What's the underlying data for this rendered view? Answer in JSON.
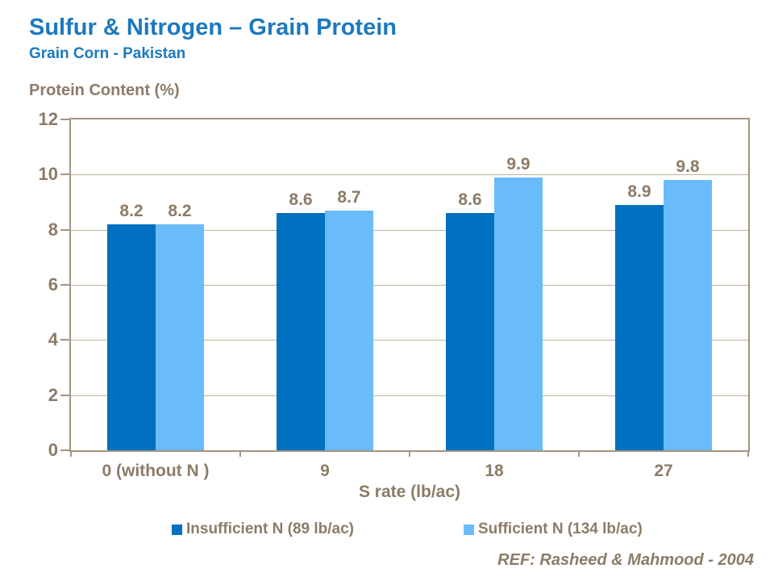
{
  "header": {
    "title": "Sulfur & Nitrogen – Grain Protein",
    "subtitle": "Grain Corn - Pakistan"
  },
  "chart_data": {
    "type": "bar",
    "title": "Sulfur & Nitrogen – Grain Protein",
    "subtitle": "Grain Corn - Pakistan",
    "xlabel": "S rate (lb/ac)",
    "ylabel": "Protein Content (%)",
    "ylim": [
      0,
      12
    ],
    "ytick_step": 2,
    "grid": "horizontal",
    "legend_position": "bottom",
    "data_labels": true,
    "categories": [
      "0 (without N )",
      "9",
      "18",
      "27"
    ],
    "series": [
      {
        "name": "Insufficient N (89 lb/ac)",
        "color": "#0070C0",
        "values": [
          8.2,
          8.6,
          8.6,
          8.9
        ]
      },
      {
        "name": "Sufficient N (134 lb/ac)",
        "color": "#69BCF9",
        "values": [
          8.2,
          8.7,
          9.9,
          9.8
        ]
      }
    ]
  },
  "footer": {
    "reference": "REF: Rasheed & Mahmood - 2004"
  },
  "colors": {
    "title_blue": "#1B79BF",
    "text_taupe": "#8C7B68",
    "axis_line": "#A4957F",
    "gridline": "#BFB29E",
    "background": "#FFFFFF"
  }
}
